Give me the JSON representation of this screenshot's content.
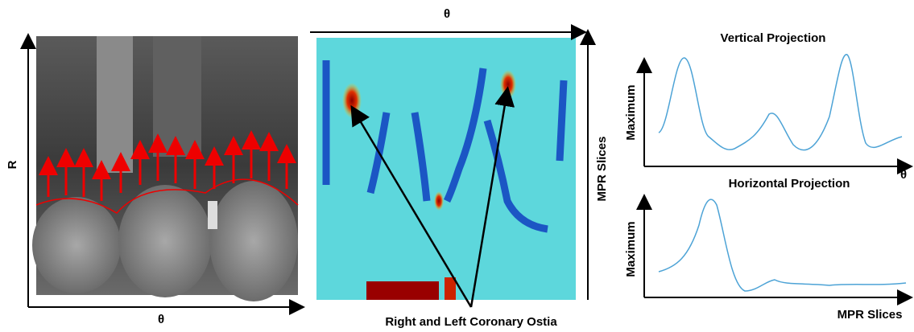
{
  "left_panel": {
    "y_label": "R",
    "x_label": "θ"
  },
  "middle_panel": {
    "x_label": "θ",
    "y_label": "MPR Slices",
    "annotation": "Right and Left Coronary Ostia"
  },
  "right_panel": {
    "plots": [
      {
        "title": "Vertical Projection",
        "y_label": "Maximum",
        "x_label": "θ"
      },
      {
        "title": "Horizontal Projection",
        "y_label": "Maximum",
        "x_label": "MPR Slices"
      }
    ]
  }
}
